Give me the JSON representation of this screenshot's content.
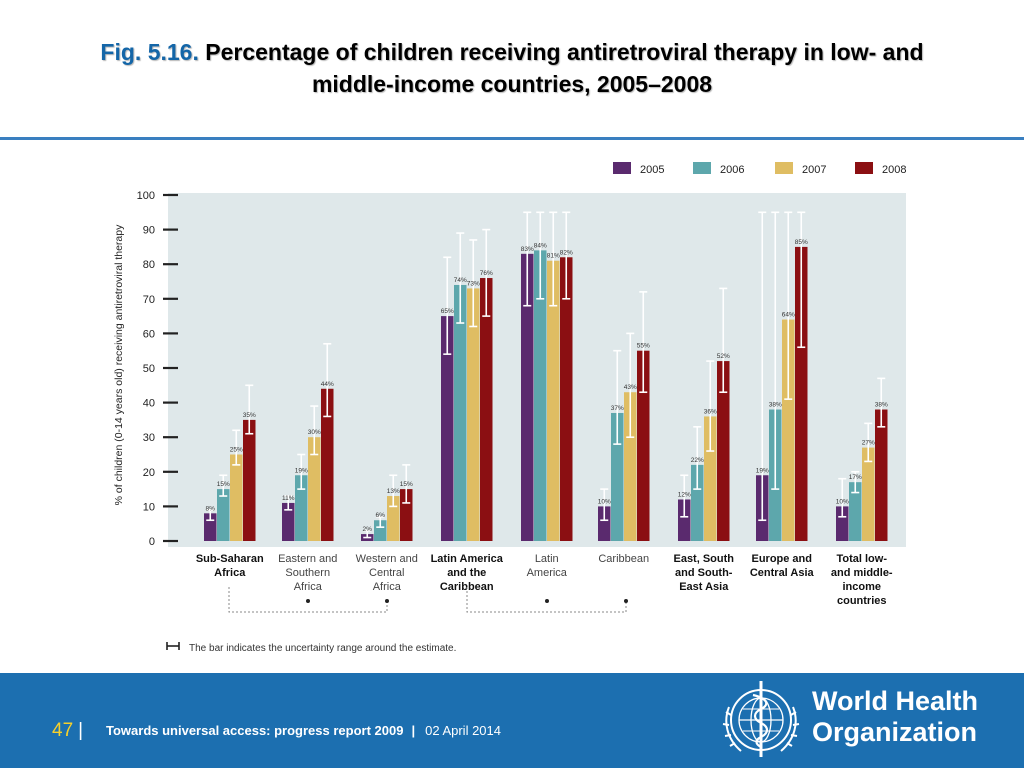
{
  "slide": {
    "title_prefix": "Fig. 5.16.",
    "title_line1": "Percentage of children receiving antiretroviral therapy in low- and",
    "title_line2": "middle-income countries, 2005–2008"
  },
  "chart_data": {
    "type": "bar",
    "ylabel": "% of children (0-14 years old) receiving antiretroviral therapy",
    "ylim": [
      0,
      100
    ],
    "yticks": [
      "0",
      "10",
      "20",
      "30",
      "40",
      "50",
      "60",
      "70",
      "80",
      "90",
      "100"
    ],
    "categories": [
      [
        "Sub-Saharan",
        "Africa"
      ],
      [
        "Eastern and",
        "Southern",
        "Africa"
      ],
      [
        "Western and",
        "Central",
        "Africa"
      ],
      [
        "Latin America",
        "and the",
        "Caribbean"
      ],
      [
        "Latin",
        "America"
      ],
      [
        "Caribbean"
      ],
      [
        "East, South",
        "and South-",
        "East Asia"
      ],
      [
        "Europe and",
        "Central Asia"
      ],
      [
        "Total low-",
        "and middle-",
        "income",
        "countries"
      ]
    ],
    "category_bold": [
      true,
      false,
      false,
      true,
      false,
      false,
      true,
      true,
      true
    ],
    "series": [
      {
        "name": "2005",
        "color": "#5a2a6e",
        "values": [
          8,
          11,
          2,
          65,
          83,
          10,
          12,
          19,
          10
        ],
        "labels": [
          "8%",
          "11%",
          "2%",
          "65%",
          "83%",
          "10%",
          "12%",
          "19%",
          "10%"
        ],
        "err_low": [
          6,
          9,
          1,
          54,
          68,
          6,
          7,
          6,
          7
        ],
        "err_high": [
          9,
          13,
          3,
          82,
          95,
          15,
          19,
          95,
          18
        ]
      },
      {
        "name": "2006",
        "color": "#5da7ac",
        "values": [
          15,
          19,
          6,
          74,
          84,
          37,
          22,
          38,
          17
        ],
        "labels": [
          "15%",
          "19%",
          "6%",
          "74%",
          "84%",
          "37%",
          "22%",
          "38%",
          "17%"
        ],
        "err_low": [
          13,
          15,
          4,
          63,
          70,
          28,
          15,
          15,
          14
        ],
        "err_high": [
          19,
          25,
          7,
          89,
          95,
          55,
          33,
          95,
          20
        ]
      },
      {
        "name": "2007",
        "color": "#dfbd63",
        "values": [
          25,
          30,
          13,
          73,
          81,
          43,
          36,
          64,
          27
        ],
        "labels": [
          "25%",
          "30%",
          "13%",
          "73%",
          "81%",
          "43%",
          "36%",
          "64%",
          "27%"
        ],
        "err_low": [
          22,
          25,
          10,
          62,
          68,
          30,
          26,
          41,
          23
        ],
        "err_high": [
          32,
          39,
          19,
          87,
          95,
          60,
          52,
          95,
          34
        ]
      },
      {
        "name": "2008",
        "color": "#8b0f12",
        "values": [
          35,
          44,
          15,
          76,
          82,
          55,
          52,
          85,
          38
        ],
        "labels": [
          "35%",
          "44%",
          "15%",
          "76%",
          "82%",
          "55%",
          "52%",
          "85%",
          "38%"
        ],
        "err_low": [
          31,
          36,
          11,
          65,
          70,
          43,
          43,
          56,
          33
        ],
        "err_high": [
          45,
          57,
          22,
          90,
          95,
          72,
          73,
          95,
          47
        ]
      }
    ],
    "legend_position": "top-right",
    "grid": false,
    "note": "The bar indicates the uncertainty range around the estimate."
  },
  "footer": {
    "page_number": "47",
    "separator": "|",
    "report_title": "Towards universal access: progress report 2009",
    "date": "02 April 2014",
    "org_line1": "World Health",
    "org_line2": "Organization"
  },
  "colors": {
    "plot_background": "#dfe8ea",
    "footer_background": "#1c6fb0",
    "title_prefix": "#1466a8",
    "page_number": "#f6d02b"
  }
}
